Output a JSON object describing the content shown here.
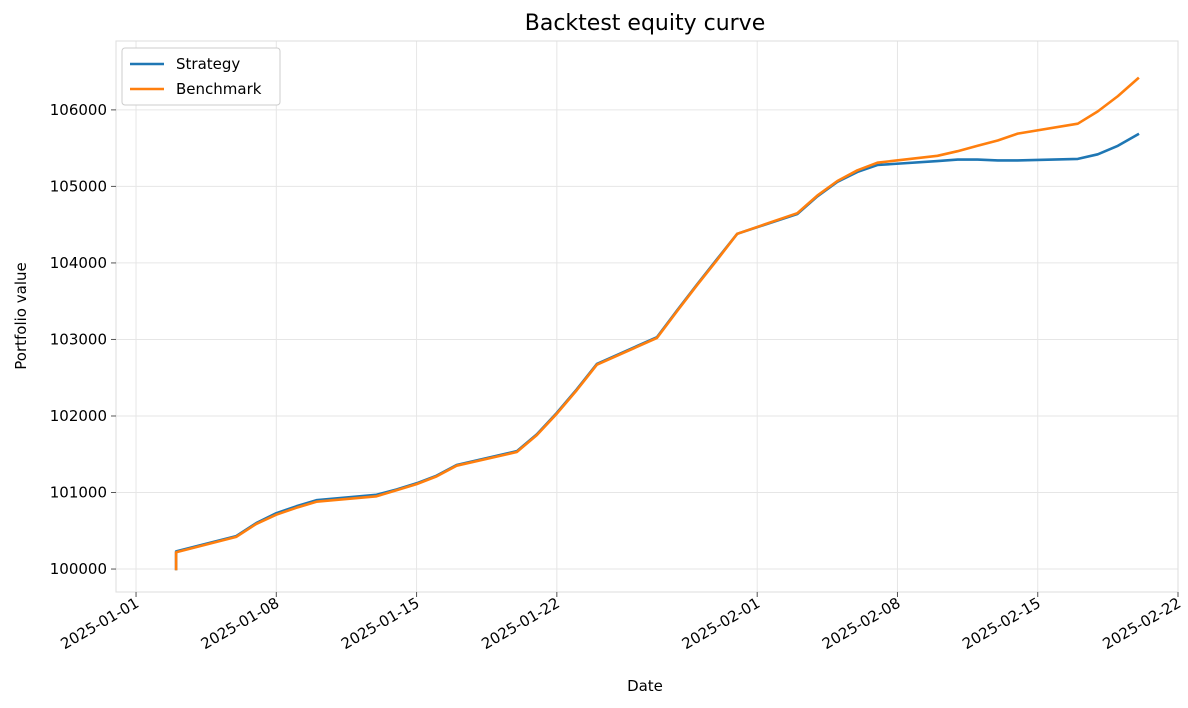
{
  "chart_data": {
    "type": "line",
    "title": "Backtest equity curve",
    "xlabel": "Date",
    "ylabel": "Portfolio value",
    "xlim": [
      "2024-12-31",
      "2025-02-22"
    ],
    "ylim": [
      99700,
      106900
    ],
    "grid": true,
    "legend_position": "top-left",
    "x_ticks": [
      "2025-01-01",
      "2025-01-08",
      "2025-01-15",
      "2025-01-22",
      "2025-02-01",
      "2025-02-08",
      "2025-02-15",
      "2025-02-22"
    ],
    "y_ticks": [
      100000,
      101000,
      102000,
      103000,
      104000,
      105000,
      106000
    ],
    "series": [
      {
        "name": "Strategy",
        "color": "#1f77b4",
        "points": [
          [
            "2025-01-03",
            100000
          ],
          [
            "2025-01-03",
            100230
          ],
          [
            "2025-01-06",
            100430
          ],
          [
            "2025-01-07",
            100600
          ],
          [
            "2025-01-08",
            100730
          ],
          [
            "2025-01-09",
            100820
          ],
          [
            "2025-01-10",
            100900
          ],
          [
            "2025-01-13",
            100970
          ],
          [
            "2025-01-14",
            101040
          ],
          [
            "2025-01-15",
            101120
          ],
          [
            "2025-01-16",
            101220
          ],
          [
            "2025-01-17",
            101360
          ],
          [
            "2025-01-20",
            101540
          ],
          [
            "2025-01-21",
            101760
          ],
          [
            "2025-01-22",
            102040
          ],
          [
            "2025-01-23",
            102350
          ],
          [
            "2025-01-24",
            102680
          ],
          [
            "2025-01-27",
            103030
          ],
          [
            "2025-01-28",
            103380
          ],
          [
            "2025-01-29",
            103720
          ],
          [
            "2025-01-30",
            104050
          ],
          [
            "2025-01-31",
            104380
          ],
          [
            "2025-02-03",
            104640
          ],
          [
            "2025-02-04",
            104870
          ],
          [
            "2025-02-05",
            105060
          ],
          [
            "2025-02-06",
            105190
          ],
          [
            "2025-02-07",
            105280
          ],
          [
            "2025-02-10",
            105330
          ],
          [
            "2025-02-11",
            105350
          ],
          [
            "2025-02-12",
            105350
          ],
          [
            "2025-02-13",
            105340
          ],
          [
            "2025-02-14",
            105340
          ],
          [
            "2025-02-17",
            105360
          ],
          [
            "2025-02-18",
            105420
          ],
          [
            "2025-02-19",
            105530
          ],
          [
            "2025-02-20",
            105680
          ]
        ]
      },
      {
        "name": "Benchmark",
        "color": "#ff7f0e",
        "points": [
          [
            "2025-01-03",
            100000
          ],
          [
            "2025-01-03",
            100220
          ],
          [
            "2025-01-06",
            100420
          ],
          [
            "2025-01-07",
            100590
          ],
          [
            "2025-01-08",
            100710
          ],
          [
            "2025-01-09",
            100800
          ],
          [
            "2025-01-10",
            100880
          ],
          [
            "2025-01-13",
            100950
          ],
          [
            "2025-01-14",
            101030
          ],
          [
            "2025-01-15",
            101110
          ],
          [
            "2025-01-16",
            101210
          ],
          [
            "2025-01-17",
            101350
          ],
          [
            "2025-01-20",
            101530
          ],
          [
            "2025-01-21",
            101750
          ],
          [
            "2025-01-22",
            102030
          ],
          [
            "2025-01-23",
            102340
          ],
          [
            "2025-01-24",
            102670
          ],
          [
            "2025-01-27",
            103020
          ],
          [
            "2025-01-28",
            103370
          ],
          [
            "2025-01-29",
            103710
          ],
          [
            "2025-01-30",
            104040
          ],
          [
            "2025-01-31",
            104380
          ],
          [
            "2025-02-03",
            104650
          ],
          [
            "2025-02-04",
            104880
          ],
          [
            "2025-02-05",
            105070
          ],
          [
            "2025-02-06",
            105210
          ],
          [
            "2025-02-07",
            105310
          ],
          [
            "2025-02-10",
            105400
          ],
          [
            "2025-02-11",
            105460
          ],
          [
            "2025-02-12",
            105530
          ],
          [
            "2025-02-13",
            105600
          ],
          [
            "2025-02-14",
            105690
          ],
          [
            "2025-02-17",
            105820
          ],
          [
            "2025-02-18",
            105980
          ],
          [
            "2025-02-19",
            106180
          ],
          [
            "2025-02-20",
            106410
          ]
        ]
      }
    ]
  }
}
